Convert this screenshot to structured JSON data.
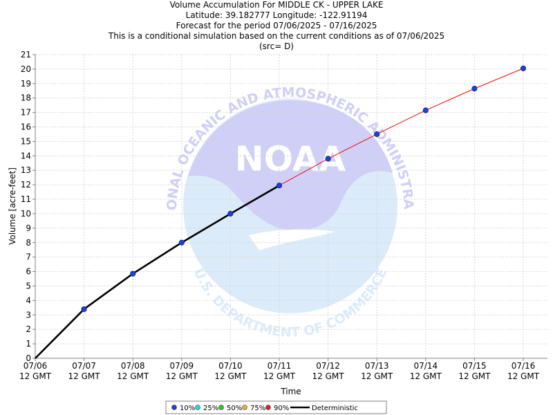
{
  "titles": [
    "Volume Accumulation For MIDDLE CK - UPPER LAKE",
    "Latitude: 39.182777 Longitude: -122.91194",
    "Forecast for the period 07/06/2025 - 07/16/2025",
    "This is a conditional simulation based on the current conditions as of 07/06/2025",
    "(src= D)"
  ],
  "watermark": {
    "logo": "NOAA",
    "top_arc": "NATIONAL OCEANIC AND ATMOSPHERIC ADMINISTRATION",
    "bottom_arc": "U.S. DEPARTMENT OF COMMERCE"
  },
  "colors": {
    "deterministic": "#000000",
    "forecast_line": "#ff0000",
    "marker": "#1f3fe0",
    "grid": "#d6d6d6",
    "watermark_top": "#cfcff7",
    "watermark_bottom": "#dcebf9"
  },
  "chart_data": {
    "type": "line",
    "xlabel": "Time",
    "ylabel": "Volume [acre-feet]",
    "ylim": [
      0,
      21
    ],
    "yticks": [
      0,
      1,
      2,
      3,
      4,
      5,
      6,
      7,
      8,
      9,
      10,
      11,
      12,
      13,
      14,
      15,
      16,
      17,
      18,
      19,
      20,
      21
    ],
    "categories": [
      [
        "07/06",
        "12 GMT"
      ],
      [
        "07/07",
        "12 GMT"
      ],
      [
        "07/08",
        "12 GMT"
      ],
      [
        "07/09",
        "12 GMT"
      ],
      [
        "07/10",
        "12 GMT"
      ],
      [
        "07/11",
        "12 GMT"
      ],
      [
        "07/12",
        "12 GMT"
      ],
      [
        "07/13",
        "12 GMT"
      ],
      [
        "07/14",
        "12 GMT"
      ],
      [
        "07/15",
        "12 GMT"
      ],
      [
        "07/16",
        "12 GMT"
      ]
    ],
    "grid": true,
    "legend_placement": "bottom-center",
    "legend": [
      {
        "label": "10%",
        "color": "#1f3fe0",
        "type": "dot"
      },
      {
        "label": "25%",
        "color": "#22d8d8",
        "type": "dot"
      },
      {
        "label": "50%",
        "color": "#22cc22",
        "type": "dot"
      },
      {
        "label": "75%",
        "color": "#e8b030",
        "type": "dot"
      },
      {
        "label": "90%",
        "color": "#e02020",
        "type": "dot"
      },
      {
        "label": "Deterministic",
        "color": "#000000",
        "type": "line"
      }
    ],
    "series": [
      {
        "name": "Deterministic",
        "x": [
          0,
          1,
          2,
          3,
          4,
          5
        ],
        "values": [
          0,
          3.4,
          5.85,
          8.0,
          10.0,
          11.95
        ]
      },
      {
        "name": "10%",
        "x": [
          1,
          2,
          3,
          4,
          5,
          6,
          7,
          8,
          9,
          10
        ],
        "values": [
          3.4,
          5.85,
          8.0,
          10.0,
          11.95,
          13.8,
          15.5,
          17.15,
          18.65,
          20.05
        ]
      }
    ]
  }
}
